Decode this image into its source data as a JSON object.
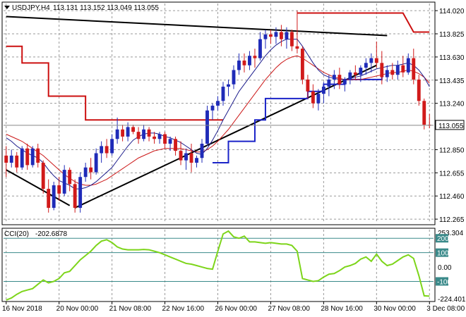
{
  "header": {
    "symbol": "USDJPY,H4",
    "ohlc": "113.131 113.152 113.049 113.055"
  },
  "cci_header": {
    "name": "CCI(20)",
    "value": "-202.6878"
  },
  "current_price_label": "113.055",
  "colors": {
    "up_candle": "#1f2bb8",
    "down_candle": "#d11a1a",
    "fast_ma": "#1c1c8c",
    "slow_ma": "#cc1818",
    "support_resist_red": "#cc1010",
    "support_blue": "#1a23c8",
    "trendline": "#000000",
    "cci_line": "#7dd51a",
    "cci_levels": "#3a8a8a",
    "price_tag_bg": "#ffffff"
  },
  "chart_data": [
    {
      "type": "candlestick",
      "title": "USDJPY,H4 113.131 113.152 113.049 113.055",
      "xlabel": "",
      "ylabel": "",
      "ylim": [
        112.23,
        114.08
      ],
      "y_ticks": [
        "114.020",
        "113.825",
        "113.630",
        "113.435",
        "113.240",
        "112.850",
        "112.655",
        "112.460",
        "112.265"
      ],
      "x_ticks": [
        "16 Nov 2018",
        "20 Nov 00:00",
        "21 Nov 08:00",
        "22 Nov 16:00",
        "26 Nov 00:00",
        "27 Nov 08:00",
        "28 Nov 16:00",
        "30 Nov 00:00",
        "3 Dec 08:00"
      ],
      "x_tick_index": [
        0,
        10,
        20,
        30,
        40,
        50,
        60,
        70,
        80
      ],
      "grid": true,
      "current_price": 113.055,
      "candles": [
        [
          112.8,
          112.88,
          112.62,
          112.74
        ],
        [
          112.74,
          112.85,
          112.7,
          112.8
        ],
        [
          112.8,
          112.83,
          112.66,
          112.7
        ],
        [
          112.7,
          112.88,
          112.68,
          112.86
        ],
        [
          112.86,
          112.9,
          112.68,
          112.72
        ],
        [
          112.72,
          112.88,
          112.7,
          112.86
        ],
        [
          112.86,
          112.9,
          112.7,
          112.74
        ],
        [
          112.74,
          112.76,
          112.48,
          112.52
        ],
        [
          112.52,
          112.6,
          112.32,
          112.36
        ],
        [
          112.36,
          112.58,
          112.34,
          112.55
        ],
        [
          112.55,
          112.62,
          112.42,
          112.48
        ],
        [
          112.48,
          112.72,
          112.46,
          112.68
        ],
        [
          112.68,
          112.7,
          112.5,
          112.56
        ],
        [
          112.56,
          112.6,
          112.32,
          112.36
        ],
        [
          112.36,
          112.66,
          112.32,
          112.62
        ],
        [
          112.62,
          112.74,
          112.58,
          112.7
        ],
        [
          112.7,
          112.78,
          112.6,
          112.66
        ],
        [
          112.66,
          112.86,
          112.64,
          112.82
        ],
        [
          112.82,
          112.92,
          112.74,
          112.88
        ],
        [
          112.88,
          112.94,
          112.78,
          112.82
        ],
        [
          112.82,
          112.98,
          112.8,
          112.94
        ],
        [
          112.94,
          113.12,
          112.9,
          113.02
        ],
        [
          113.02,
          113.06,
          112.92,
          112.96
        ],
        [
          112.96,
          113.08,
          112.92,
          113.04
        ],
        [
          113.04,
          113.06,
          112.98,
          113.0
        ],
        [
          113.0,
          113.04,
          112.9,
          112.94
        ],
        [
          112.94,
          113.06,
          112.92,
          113.02
        ],
        [
          113.02,
          113.04,
          112.92,
          112.96
        ],
        [
          112.96,
          113.0,
          112.9,
          112.94
        ],
        [
          112.94,
          113.0,
          112.9,
          112.98
        ],
        [
          112.98,
          113.0,
          112.86,
          112.9
        ],
        [
          112.9,
          112.96,
          112.84,
          112.94
        ],
        [
          112.94,
          112.96,
          112.8,
          112.84
        ],
        [
          112.84,
          112.92,
          112.72,
          112.76
        ],
        [
          112.76,
          112.86,
          112.68,
          112.82
        ],
        [
          112.82,
          112.9,
          112.66,
          112.74
        ],
        [
          112.74,
          112.8,
          112.7,
          112.78
        ],
        [
          112.78,
          112.94,
          112.74,
          112.9
        ],
        [
          112.9,
          113.22,
          112.88,
          113.18
        ],
        [
          113.18,
          113.24,
          113.1,
          113.22
        ],
        [
          113.22,
          113.3,
          113.18,
          113.26
        ],
        [
          113.26,
          113.42,
          113.22,
          113.38
        ],
        [
          113.38,
          113.44,
          113.3,
          113.4
        ],
        [
          113.4,
          113.56,
          113.36,
          113.52
        ],
        [
          113.52,
          113.66,
          113.48,
          113.6
        ],
        [
          113.6,
          113.66,
          113.5,
          113.56
        ],
        [
          113.56,
          113.68,
          113.52,
          113.64
        ],
        [
          113.64,
          113.7,
          113.54,
          113.62
        ],
        [
          113.62,
          113.84,
          113.6,
          113.78
        ],
        [
          113.78,
          113.86,
          113.7,
          113.82
        ],
        [
          113.82,
          113.86,
          113.74,
          113.8
        ],
        [
          113.8,
          113.88,
          113.74,
          113.84
        ],
        [
          113.84,
          113.9,
          113.72,
          113.78
        ],
        [
          113.78,
          113.88,
          113.7,
          113.84
        ],
        [
          113.84,
          113.86,
          113.68,
          113.72
        ],
        [
          113.72,
          114.02,
          113.66,
          113.7
        ],
        [
          113.7,
          113.72,
          113.4,
          113.44
        ],
        [
          113.44,
          113.48,
          113.28,
          113.34
        ],
        [
          113.34,
          113.4,
          113.2,
          113.24
        ],
        [
          113.24,
          113.36,
          113.18,
          113.32
        ],
        [
          113.32,
          113.42,
          113.24,
          113.38
        ],
        [
          113.38,
          113.48,
          113.3,
          113.44
        ],
        [
          113.44,
          113.52,
          113.36,
          113.48
        ],
        [
          113.48,
          113.54,
          113.36,
          113.4
        ],
        [
          113.4,
          113.46,
          113.34,
          113.44
        ],
        [
          113.44,
          113.52,
          113.4,
          113.5
        ],
        [
          113.5,
          113.56,
          113.44,
          113.48
        ],
        [
          113.48,
          113.56,
          113.42,
          113.54
        ],
        [
          113.54,
          113.62,
          113.48,
          113.58
        ],
        [
          113.58,
          113.66,
          113.5,
          113.62
        ],
        [
          113.62,
          113.76,
          113.54,
          113.58
        ],
        [
          113.58,
          113.68,
          113.4,
          113.46
        ],
        [
          113.46,
          113.56,
          113.42,
          113.52
        ],
        [
          113.52,
          113.58,
          113.44,
          113.48
        ],
        [
          113.48,
          113.6,
          113.44,
          113.56
        ],
        [
          113.56,
          113.64,
          113.46,
          113.5
        ],
        [
          113.5,
          113.66,
          113.48,
          113.62
        ],
        [
          113.62,
          113.7,
          113.4,
          113.44
        ],
        [
          113.44,
          113.48,
          113.22,
          113.26
        ],
        [
          113.26,
          113.28,
          113.02,
          113.06
        ],
        [
          113.06,
          113.15,
          113.03,
          113.055
        ]
      ],
      "fast_ma": [
        112.95,
        112.92,
        112.88,
        112.85,
        112.82,
        112.8,
        112.78,
        112.74,
        112.68,
        112.63,
        112.59,
        112.57,
        112.55,
        112.52,
        112.52,
        112.53,
        112.55,
        112.58,
        112.62,
        112.66,
        112.7,
        112.76,
        112.82,
        112.88,
        112.93,
        112.96,
        112.98,
        112.99,
        112.99,
        112.98,
        112.96,
        112.95,
        112.93,
        112.91,
        112.88,
        112.85,
        112.82,
        112.81,
        112.86,
        112.93,
        113.01,
        113.1,
        113.18,
        113.26,
        113.34,
        113.4,
        113.46,
        113.52,
        113.58,
        113.64,
        113.69,
        113.73,
        113.76,
        113.78,
        113.78,
        113.78,
        113.72,
        113.65,
        113.58,
        113.52,
        113.48,
        113.46,
        113.45,
        113.44,
        113.44,
        113.45,
        113.46,
        113.47,
        113.49,
        113.51,
        113.53,
        113.54,
        113.55,
        113.56,
        113.56,
        113.57,
        113.58,
        113.56,
        113.52,
        113.46,
        113.38
      ],
      "slow_ma": [
        112.98,
        112.96,
        112.94,
        112.92,
        112.89,
        112.86,
        112.83,
        112.8,
        112.76,
        112.72,
        112.68,
        112.64,
        112.61,
        112.58,
        112.56,
        112.55,
        112.55,
        112.56,
        112.58,
        112.6,
        112.63,
        112.66,
        112.69,
        112.72,
        112.75,
        112.78,
        112.8,
        112.82,
        112.84,
        112.85,
        112.86,
        112.86,
        112.86,
        112.86,
        112.85,
        112.84,
        112.83,
        112.83,
        112.85,
        112.88,
        112.92,
        112.97,
        113.02,
        113.08,
        113.14,
        113.2,
        113.26,
        113.32,
        113.38,
        113.44,
        113.49,
        113.54,
        113.58,
        113.61,
        113.63,
        113.64,
        113.62,
        113.59,
        113.56,
        113.53,
        113.5,
        113.48,
        113.46,
        113.45,
        113.44,
        113.44,
        113.44,
        113.44,
        113.45,
        113.46,
        113.47,
        113.48,
        113.49,
        113.5,
        113.5,
        113.51,
        113.52,
        113.51,
        113.49,
        113.46,
        113.41
      ],
      "red_stop_steps": [
        [
          0,
          113.72
        ],
        [
          3,
          113.58
        ],
        [
          8,
          113.3
        ],
        [
          15,
          113.1
        ],
        [
          41,
          113.1
        ]
      ],
      "red_stop_upper": [
        [
          55,
          114.0
        ],
        [
          75,
          114.0
        ],
        [
          77,
          113.84
        ],
        [
          80,
          113.84
        ]
      ],
      "blue_stop_steps": [
        [
          39,
          112.74
        ],
        [
          42,
          112.92
        ],
        [
          45,
          112.92
        ],
        [
          47,
          113.1
        ],
        [
          49,
          113.28
        ],
        [
          53,
          113.28
        ],
        [
          57,
          113.34
        ],
        [
          60,
          113.4
        ],
        [
          64,
          113.44
        ],
        [
          71,
          113.46
        ]
      ],
      "trendlines": [
        [
          [
            0,
            113.97
          ],
          [
            72,
            113.81
          ]
        ],
        [
          [
            0,
            112.68
          ],
          [
            12,
            112.38
          ]
        ],
        [
          [
            13,
            112.36
          ],
          [
            70,
            113.56
          ]
        ]
      ]
    },
    {
      "type": "line",
      "title": "CCI(20) -202.6878",
      "xlabel": "",
      "ylabel": "",
      "ylim": [
        -230,
        260
      ],
      "y_ticks": [
        "253.304",
        "200",
        "100",
        "0.00",
        "-100",
        "-224.4017"
      ],
      "levels": [
        200,
        100,
        -100
      ],
      "grid": true,
      "values": [
        -230,
        -215,
        -190,
        -170,
        -160,
        -150,
        -120,
        -90,
        -110,
        -100,
        -80,
        -40,
        -30,
        10,
        50,
        80,
        110,
        150,
        180,
        190,
        170,
        140,
        125,
        120,
        120,
        120,
        122,
        120,
        110,
        100,
        85,
        70,
        55,
        40,
        25,
        20,
        10,
        0,
        -10,
        -15,
        110,
        230,
        250,
        210,
        200,
        215,
        175,
        175,
        170,
        165,
        170,
        165,
        160,
        160,
        150,
        110,
        -80,
        -90,
        -100,
        -95,
        -70,
        -50,
        -45,
        -25,
        0,
        10,
        25,
        55,
        70,
        40,
        90,
        40,
        10,
        20,
        45,
        70,
        85,
        60,
        -60,
        -200,
        -202.69
      ]
    }
  ]
}
